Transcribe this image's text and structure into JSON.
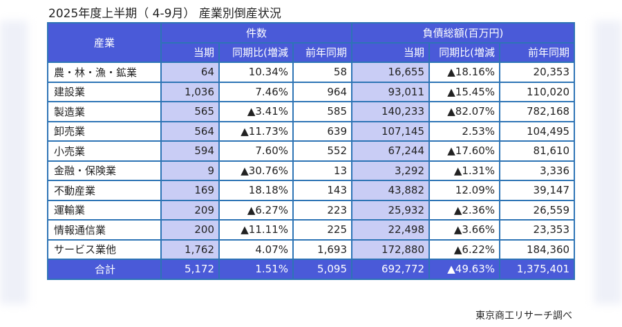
{
  "title": "2025年度上半期（ 4-9月） 産業別倒産状況",
  "header": {
    "industry": "産業",
    "count_group": "件数",
    "debt_group": "負債総額(百万円)",
    "sub": [
      "当期",
      "同期比(増減",
      "前年同期",
      "当期",
      "同期比(増減",
      "前年同期"
    ]
  },
  "rows": [
    [
      "農・林・漁・鉱業",
      "64",
      "10.34%",
      "58",
      "16,655",
      "▲18.16%",
      "20,353"
    ],
    [
      "建設業",
      "1,036",
      "7.46%",
      "964",
      "93,011",
      "▲15.45%",
      "110,020"
    ],
    [
      "製造業",
      "565",
      "▲3.41%",
      "585",
      "140,233",
      "▲82.07%",
      "782,168"
    ],
    [
      "卸売業",
      "564",
      "▲11.73%",
      "639",
      "107,145",
      "2.53%",
      "104,495"
    ],
    [
      "小売業",
      "594",
      "7.60%",
      "552",
      "67,244",
      "▲17.60%",
      "81,610"
    ],
    [
      "金融・保険業",
      "9",
      "▲30.76%",
      "13",
      "3,292",
      "▲1.31%",
      "3,336"
    ],
    [
      "不動産業",
      "169",
      "18.18%",
      "143",
      "43,882",
      "12.09%",
      "39,147"
    ],
    [
      "運輸業",
      "209",
      "▲6.27%",
      "223",
      "25,932",
      "▲2.36%",
      "26,559"
    ],
    [
      "情報通信業",
      "200",
      "▲11.11%",
      "225",
      "22,498",
      "▲3.66%",
      "23,353"
    ],
    [
      "サービス業他",
      "1,762",
      "4.07%",
      "1,693",
      "172,880",
      "▲6.22%",
      "184,360"
    ]
  ],
  "total": [
    "合計",
    "5,172",
    "1.51%",
    "5,095",
    "692,772",
    "▲49.63%",
    "1,375,401"
  ],
  "source": "東京商工リサーチ調べ"
}
